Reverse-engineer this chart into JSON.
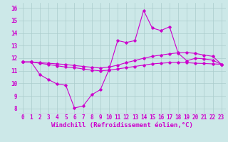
{
  "background_color": "#cce8e8",
  "grid_color": "#aacccc",
  "line_color": "#cc00cc",
  "xlabel": "Windchill (Refroidissement éolien,°C)",
  "xlim": [
    -0.5,
    23.5
  ],
  "ylim": [
    7.6,
    16.4
  ],
  "yticks": [
    8,
    9,
    10,
    11,
    12,
    13,
    14,
    15,
    16
  ],
  "xticks": [
    0,
    1,
    2,
    3,
    4,
    5,
    6,
    7,
    8,
    9,
    10,
    11,
    12,
    13,
    14,
    15,
    16,
    17,
    18,
    19,
    20,
    21,
    22,
    23
  ],
  "line1_x": [
    0,
    1,
    2,
    3,
    4,
    5,
    6,
    7,
    8,
    9,
    10,
    11,
    12,
    13,
    14,
    15,
    16,
    17,
    18,
    19,
    20,
    21,
    22,
    23
  ],
  "line1_y": [
    11.7,
    11.7,
    10.7,
    10.3,
    9.95,
    9.85,
    8.05,
    8.2,
    9.1,
    9.5,
    11.1,
    13.4,
    13.25,
    13.4,
    15.8,
    14.4,
    14.2,
    14.5,
    12.4,
    11.8,
    12.0,
    11.95,
    11.85,
    11.5
  ],
  "line2_x": [
    0,
    1,
    2,
    3,
    4,
    5,
    6,
    7,
    8,
    9,
    10,
    11,
    12,
    13,
    14,
    15,
    16,
    17,
    18,
    19,
    20,
    21,
    22,
    23
  ],
  "line2_y": [
    11.7,
    11.7,
    11.65,
    11.6,
    11.55,
    11.5,
    11.42,
    11.35,
    11.28,
    11.22,
    11.3,
    11.45,
    11.65,
    11.82,
    12.0,
    12.15,
    12.25,
    12.35,
    12.43,
    12.45,
    12.38,
    12.25,
    12.15,
    11.52
  ],
  "line3_x": [
    0,
    1,
    2,
    3,
    4,
    5,
    6,
    7,
    8,
    9,
    10,
    11,
    12,
    13,
    14,
    15,
    16,
    17,
    18,
    19,
    20,
    21,
    22,
    23
  ],
  "line3_y": [
    11.7,
    11.7,
    11.6,
    11.5,
    11.4,
    11.3,
    11.25,
    11.15,
    11.05,
    11.0,
    11.05,
    11.15,
    11.25,
    11.35,
    11.45,
    11.55,
    11.6,
    11.65,
    11.68,
    11.65,
    11.6,
    11.58,
    11.55,
    11.52
  ],
  "tick_fontsize": 5.5,
  "xlabel_fontsize": 6.5,
  "lw": 0.8,
  "ms": 1.8
}
